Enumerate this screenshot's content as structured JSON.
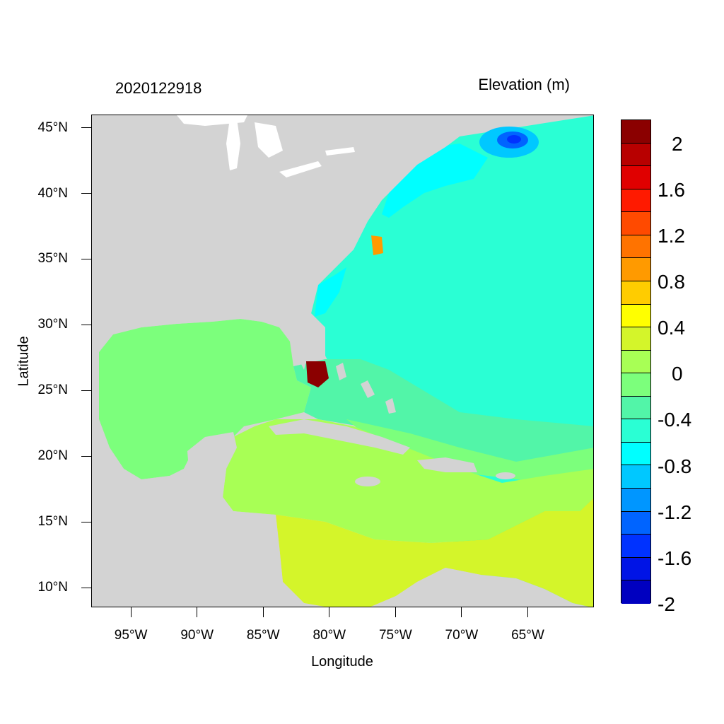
{
  "title_left": "2020122918",
  "title_right": "Elevation (m)",
  "axes": {
    "xlabel": "Longitude",
    "ylabel": "Latitude",
    "lat_ticks": [
      {
        "label": "45°N",
        "value": 45
      },
      {
        "label": "40°N",
        "value": 40
      },
      {
        "label": "35°N",
        "value": 35
      },
      {
        "label": "30°N",
        "value": 30
      },
      {
        "label": "25°N",
        "value": 25
      },
      {
        "label": "20°N",
        "value": 20
      },
      {
        "label": "15°N",
        "value": 15
      },
      {
        "label": "10°N",
        "value": 10
      }
    ],
    "lon_ticks": [
      {
        "label": "95°W",
        "value": -95
      },
      {
        "label": "90°W",
        "value": -90
      },
      {
        "label": "85°W",
        "value": -85
      },
      {
        "label": "80°W",
        "value": -80
      },
      {
        "label": "75°W",
        "value": -75
      },
      {
        "label": "70°W",
        "value": -70
      },
      {
        "label": "65°W",
        "value": -65
      }
    ],
    "lon_range": [
      -98,
      -60
    ],
    "lat_range": [
      8.5,
      46
    ]
  },
  "colorbar": {
    "colors": [
      "#8b0000",
      "#b80000",
      "#e00000",
      "#ff1a00",
      "#ff4a00",
      "#ff7300",
      "#ff9a00",
      "#ffcc00",
      "#ffff00",
      "#d4f52a",
      "#a8ff55",
      "#7cff7c",
      "#52f5a8",
      "#2affd4",
      "#00ffff",
      "#00c8ff",
      "#0096ff",
      "#0064ff",
      "#0032ff",
      "#0014e6",
      "#0000c0"
    ],
    "labels": [
      {
        "text": "2",
        "boundary": 2
      },
      {
        "text": "1.6",
        "boundary": 4
      },
      {
        "text": "1.2",
        "boundary": 6
      },
      {
        "text": "0.8",
        "boundary": 8
      },
      {
        "text": "0.4",
        "boundary": 10
      },
      {
        "text": "0",
        "boundary": 12
      },
      {
        "text": "-0.4",
        "boundary": 14
      },
      {
        "text": "-0.8",
        "boundary": 16
      },
      {
        "text": "-1.2",
        "boundary": 18
      },
      {
        "text": "-1.6",
        "boundary": 20
      },
      {
        "text": "-2",
        "boundary": 22
      }
    ]
  },
  "colors": {
    "land": "#d3d3d3",
    "lakes": "#ffffff",
    "open_ocean": "#2affd4",
    "gulf": "#7cff7c",
    "caribbean_north": "#a8ff55",
    "caribbean_south": "#d4f52a",
    "shelf_negative": "#52f5a8",
    "maine_low": "#0096ff",
    "florida_high": "#8b0000"
  }
}
